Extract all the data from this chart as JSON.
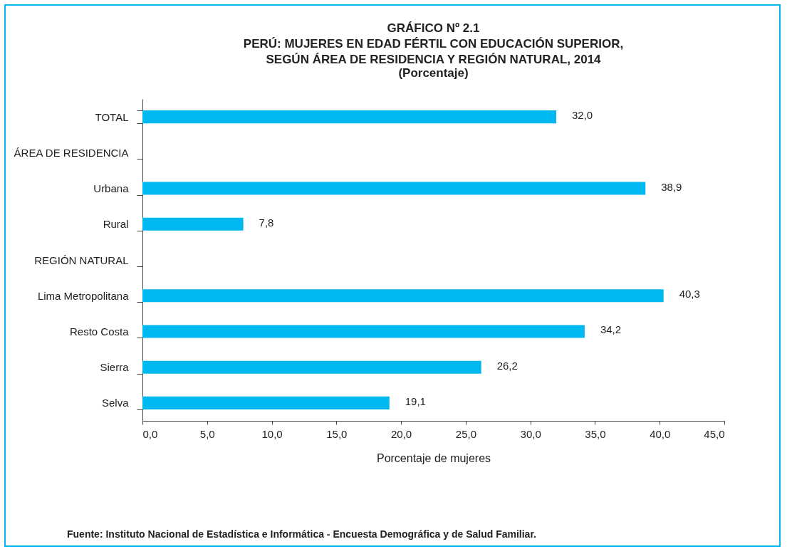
{
  "chart_data": {
    "type": "bar",
    "orientation": "horizontal",
    "title": "GRÁFICO Nº 2.1\nPERÚ: MUJERES EN EDAD FÉRTIL CON EDUCACIÓN SUPERIOR,\nSEGÚN ÁREA DE RESIDENCIA Y REGIÓN NATURAL, 2014",
    "subtitle": "(Porcentaje)",
    "xlabel": "Porcentaje de mujeres",
    "categories": [
      "TOTAL",
      "ÁREA DE RESIDENCIA",
      "Urbana",
      "Rural",
      "REGIÓN NATURAL",
      "Lima Metropolitana",
      "Resto Costa",
      "Sierra",
      "Selva"
    ],
    "values": [
      32.0,
      null,
      38.9,
      7.8,
      null,
      40.3,
      34.2,
      26.2,
      19.1
    ],
    "value_labels": [
      "32,0",
      null,
      "38,9",
      "7,8",
      null,
      "40,3",
      "34,2",
      "26,2",
      "19,1"
    ],
    "color": "#00b8f0",
    "xlim": [
      0,
      45
    ],
    "xticks": [
      {
        "value": 0,
        "label": "0,0"
      },
      {
        "value": 5,
        "label": "5,0"
      },
      {
        "value": 10,
        "label": "10,0"
      },
      {
        "value": 15,
        "label": "15,0"
      },
      {
        "value": 20,
        "label": "20,0"
      },
      {
        "value": 25,
        "label": "25,0"
      },
      {
        "value": 30,
        "label": "30,0"
      },
      {
        "value": 35,
        "label": "35,0"
      },
      {
        "value": 40,
        "label": "40,0"
      },
      {
        "value": 45,
        "label": "45,0"
      }
    ],
    "grid": false,
    "annotations": [
      "Fuente: Instituto Nacional de Estadística e Informática - Encuesta Demográfica y de Salud Familiar."
    ]
  }
}
